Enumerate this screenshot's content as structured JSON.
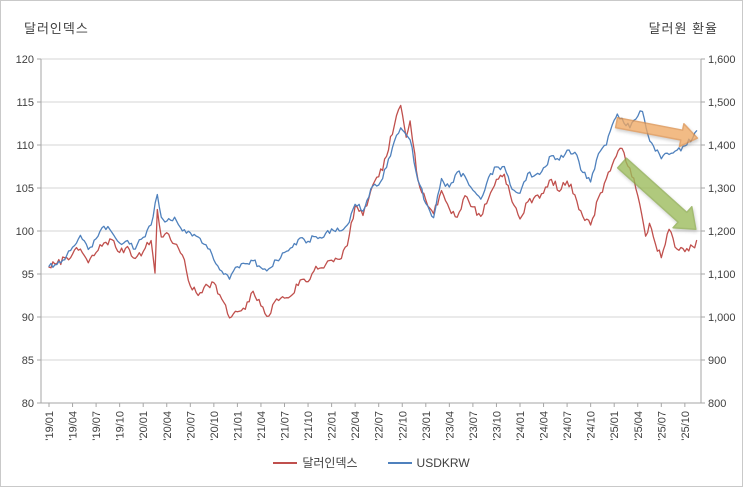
{
  "chart_data": {
    "type": "line",
    "title_left": "달러인덱스",
    "title_right": "달러원 환율",
    "legend": [
      {
        "label": "달러인덱스",
        "color": "#C0504D"
      },
      {
        "label": "USDKRW",
        "color": "#4F81BD"
      }
    ],
    "x_axis": {
      "tick_labels": [
        "'19/01",
        "'19/04",
        "'19/07",
        "'19/10",
        "'20/01",
        "'20/04",
        "'20/07",
        "'20/10",
        "'21/01",
        "'21/04",
        "'21/07",
        "'21/10",
        "'22/01",
        "'22/04",
        "'22/07",
        "'22/10",
        "'23/01",
        "'23/04",
        "'23/07",
        "'23/10",
        "'24/01",
        "'24/04",
        "'24/07",
        "'24/10",
        "'25/01",
        "'25/04",
        "'25/07",
        "'25/10"
      ],
      "months_per_tick": 3
    },
    "y_left": {
      "tick_labels": [
        "120",
        "115",
        "110",
        "105",
        "100",
        "95",
        "90",
        "85",
        "80"
      ],
      "min": 80,
      "max": 120,
      "step": 5
    },
    "y_right": {
      "tick_labels": [
        "1,600",
        "1,500",
        "1,400",
        "1,300",
        "1,200",
        "1,100",
        "1,000",
        "900",
        "800"
      ],
      "min": 800,
      "max": 1600,
      "step": 100
    },
    "grid": "horizontal-only",
    "legend_position": "bottom-center",
    "series": [
      {
        "name": "달러인덱스",
        "axis": "left",
        "color": "#C0504D",
        "points": [
          [
            0,
            95.8
          ],
          [
            1,
            96.2
          ],
          [
            2,
            96.9
          ],
          [
            3,
            97.3
          ],
          [
            4,
            97.9
          ],
          [
            5,
            96.3
          ],
          [
            6,
            97.5
          ],
          [
            7,
            98.6
          ],
          [
            8,
            99.0
          ],
          [
            9,
            97.5
          ],
          [
            10,
            98.2
          ],
          [
            11,
            96.8
          ],
          [
            12,
            97.6
          ],
          [
            13,
            98.9
          ],
          [
            13.5,
            95.1
          ],
          [
            13.8,
            102.5
          ],
          [
            14.3,
            99.3
          ],
          [
            15,
            99.8
          ],
          [
            16,
            98.5
          ],
          [
            17,
            97.2
          ],
          [
            18,
            93.6
          ],
          [
            19,
            92.5
          ],
          [
            20,
            93.8
          ],
          [
            21,
            94.0
          ],
          [
            22,
            92.1
          ],
          [
            23,
            89.9
          ],
          [
            24,
            90.6
          ],
          [
            25,
            90.9
          ],
          [
            26,
            93.0
          ],
          [
            27,
            91.3
          ],
          [
            28,
            90.1
          ],
          [
            29,
            92.1
          ],
          [
            30,
            92.2
          ],
          [
            31,
            92.6
          ],
          [
            32,
            94.3
          ],
          [
            33,
            94.1
          ],
          [
            34,
            95.9
          ],
          [
            35,
            95.7
          ],
          [
            36,
            96.6
          ],
          [
            37,
            96.7
          ],
          [
            38,
            98.3
          ],
          [
            39,
            102.9
          ],
          [
            40,
            101.8
          ],
          [
            41,
            104.7
          ],
          [
            42,
            106.3
          ],
          [
            43,
            108.7
          ],
          [
            44,
            112.3
          ],
          [
            44.8,
            114.6
          ],
          [
            45.5,
            110.9
          ],
          [
            46,
            112.8
          ],
          [
            46.6,
            109.0
          ],
          [
            47,
            106.0
          ],
          [
            48,
            103.6
          ],
          [
            49,
            102.0
          ],
          [
            50,
            104.7
          ],
          [
            51,
            102.6
          ],
          [
            52,
            101.6
          ],
          [
            53,
            104.1
          ],
          [
            54,
            102.8
          ],
          [
            55,
            101.7
          ],
          [
            56,
            103.8
          ],
          [
            57,
            106.0
          ],
          [
            58,
            106.6
          ],
          [
            59,
            103.4
          ],
          [
            60,
            101.4
          ],
          [
            61,
            103.4
          ],
          [
            62,
            104.1
          ],
          [
            63,
            104.4
          ],
          [
            64,
            106.0
          ],
          [
            65,
            104.6
          ],
          [
            66,
            105.8
          ],
          [
            67,
            104.2
          ],
          [
            68,
            101.7
          ],
          [
            69,
            100.7
          ],
          [
            70,
            103.9
          ],
          [
            71,
            106.1
          ],
          [
            72,
            108.3
          ],
          [
            73,
            109.6
          ],
          [
            74,
            107.3
          ],
          [
            75,
            104.1
          ],
          [
            76,
            99.4
          ],
          [
            76.5,
            100.9
          ],
          [
            77,
            99.3
          ],
          [
            78,
            96.9
          ],
          [
            79,
            100.2
          ],
          [
            80,
            97.9
          ],
          [
            81,
            97.6
          ],
          [
            82,
            98.2
          ],
          [
            82.5,
            98.9
          ]
        ]
      },
      {
        "name": "USDKRW",
        "axis": "right",
        "color": "#4F81BD",
        "points": [
          [
            0,
            1118
          ],
          [
            1,
            1122
          ],
          [
            2,
            1133
          ],
          [
            3,
            1162
          ],
          [
            4,
            1190
          ],
          [
            5,
            1157
          ],
          [
            6,
            1182
          ],
          [
            7,
            1211
          ],
          [
            8,
            1197
          ],
          [
            9,
            1172
          ],
          [
            10,
            1178
          ],
          [
            11,
            1158
          ],
          [
            12,
            1185
          ],
          [
            13,
            1214
          ],
          [
            13.8,
            1285
          ],
          [
            14.3,
            1232
          ],
          [
            15,
            1223
          ],
          [
            16,
            1232
          ],
          [
            17,
            1200
          ],
          [
            18,
            1196
          ],
          [
            19,
            1186
          ],
          [
            20,
            1168
          ],
          [
            21,
            1133
          ],
          [
            22,
            1107
          ],
          [
            23,
            1088
          ],
          [
            24,
            1117
          ],
          [
            25,
            1124
          ],
          [
            26,
            1131
          ],
          [
            27,
            1115
          ],
          [
            28,
            1112
          ],
          [
            29,
            1132
          ],
          [
            30,
            1150
          ],
          [
            31,
            1162
          ],
          [
            32,
            1184
          ],
          [
            33,
            1176
          ],
          [
            34,
            1187
          ],
          [
            35,
            1186
          ],
          [
            36,
            1205
          ],
          [
            37,
            1200
          ],
          [
            38,
            1214
          ],
          [
            39,
            1262
          ],
          [
            40,
            1246
          ],
          [
            41,
            1298
          ],
          [
            42,
            1307
          ],
          [
            43,
            1348
          ],
          [
            44,
            1409
          ],
          [
            44.8,
            1440
          ],
          [
            45.5,
            1424
          ],
          [
            46,
            1412
          ],
          [
            47,
            1318
          ],
          [
            48,
            1264
          ],
          [
            49,
            1231
          ],
          [
            50,
            1322
          ],
          [
            51,
            1302
          ],
          [
            52,
            1337
          ],
          [
            53,
            1327
          ],
          [
            54,
            1295
          ],
          [
            55,
            1274
          ],
          [
            56,
            1325
          ],
          [
            57,
            1349
          ],
          [
            58,
            1350
          ],
          [
            59,
            1297
          ],
          [
            60,
            1288
          ],
          [
            61,
            1334
          ],
          [
            62,
            1331
          ],
          [
            63,
            1347
          ],
          [
            64,
            1375
          ],
          [
            65,
            1365
          ],
          [
            66,
            1388
          ],
          [
            67,
            1383
          ],
          [
            68,
            1336
          ],
          [
            69,
            1314
          ],
          [
            70,
            1380
          ],
          [
            71,
            1400
          ],
          [
            72,
            1458
          ],
          [
            72.4,
            1472
          ],
          [
            73,
            1462
          ],
          [
            74,
            1440
          ],
          [
            75,
            1467
          ],
          [
            75.6,
            1478
          ],
          [
            76.3,
            1423
          ],
          [
            77,
            1398
          ],
          [
            78,
            1368
          ],
          [
            79,
            1378
          ],
          [
            80,
            1388
          ],
          [
            81,
            1398
          ],
          [
            82,
            1416
          ],
          [
            82.5,
            1433
          ]
        ]
      }
    ],
    "annotations": [
      {
        "name": "orange-trend-arrow",
        "axis": "right",
        "from": [
          72.3,
          1452
        ],
        "to": [
          82.6,
          1416
        ],
        "fill": "#EFA863",
        "stroke": "#DB8F4B",
        "opacity": 0.78,
        "shaft": 10,
        "head_l": 16,
        "head_w": 23
      },
      {
        "name": "green-trend-arrow",
        "axis": "left",
        "from": [
          73.0,
          107.9
        ],
        "to": [
          82.4,
          100.2
        ],
        "fill": "#9BBB59",
        "stroke": "#8AA94B",
        "opacity": 0.78,
        "shaft": 13,
        "head_l": 18,
        "head_w": 28
      }
    ]
  }
}
